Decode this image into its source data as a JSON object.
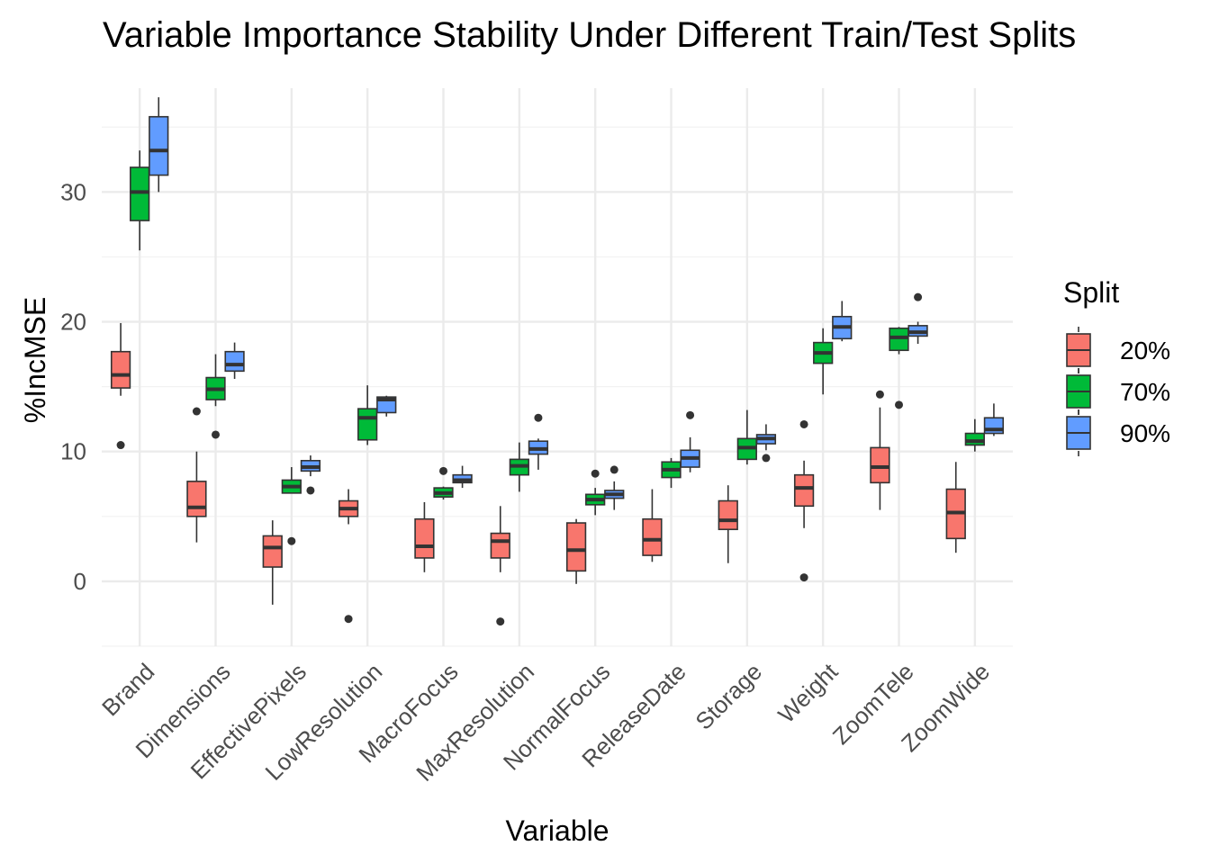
{
  "chart_data": {
    "type": "boxplot",
    "title": "Variable Importance Stability Under Different Train/Test Splits",
    "xlabel": "Variable",
    "ylabel": "%IncMSE",
    "ylim": [
      -5,
      38
    ],
    "yticks": [
      0,
      10,
      20,
      30
    ],
    "grid": true,
    "legend": {
      "title": "Split",
      "position": "right"
    },
    "categories": [
      "Brand",
      "Dimensions",
      "EffectivePixels",
      "LowResolution",
      "MacroFocus",
      "MaxResolution",
      "NormalFocus",
      "ReleaseDate",
      "Storage",
      "Weight",
      "ZoomTele",
      "ZoomWide"
    ],
    "series": [
      {
        "name": "20%",
        "color": "#F8766D",
        "boxes": [
          {
            "min": 14.3,
            "q1": 14.9,
            "median": 15.9,
            "q3": 17.7,
            "max": 19.9,
            "outliers": [
              10.5
            ]
          },
          {
            "min": 3.0,
            "q1": 5.0,
            "median": 5.7,
            "q3": 7.7,
            "max": 10.0,
            "outliers": [
              13.1
            ]
          },
          {
            "min": -1.8,
            "q1": 1.1,
            "median": 2.6,
            "q3": 3.5,
            "max": 4.7,
            "outliers": []
          },
          {
            "min": 4.4,
            "q1": 5.0,
            "median": 5.6,
            "q3": 6.2,
            "max": 7.1,
            "outliers": [
              -2.9
            ]
          },
          {
            "min": 0.7,
            "q1": 1.8,
            "median": 2.7,
            "q3": 4.8,
            "max": 6.1,
            "outliers": []
          },
          {
            "min": 0.7,
            "q1": 1.8,
            "median": 3.1,
            "q3": 3.7,
            "max": 5.8,
            "outliers": [
              -3.1
            ]
          },
          {
            "min": -0.2,
            "q1": 0.8,
            "median": 2.4,
            "q3": 4.5,
            "max": 4.8,
            "outliers": []
          },
          {
            "min": 1.5,
            "q1": 2.0,
            "median": 3.2,
            "q3": 4.8,
            "max": 7.1,
            "outliers": []
          },
          {
            "min": 1.4,
            "q1": 4.0,
            "median": 4.7,
            "q3": 6.2,
            "max": 7.4,
            "outliers": []
          },
          {
            "min": 4.1,
            "q1": 5.8,
            "median": 7.2,
            "q3": 8.2,
            "max": 9.3,
            "outliers": [
              12.1,
              0.3
            ]
          },
          {
            "min": 5.5,
            "q1": 7.6,
            "median": 8.8,
            "q3": 10.3,
            "max": 13.4,
            "outliers": [
              14.4
            ]
          },
          {
            "min": 2.2,
            "q1": 3.3,
            "median": 5.3,
            "q3": 7.1,
            "max": 9.2,
            "outliers": []
          }
        ]
      },
      {
        "name": "70%",
        "color": "#00BA38",
        "boxes": [
          {
            "min": 25.5,
            "q1": 27.8,
            "median": 30.0,
            "q3": 31.9,
            "max": 33.2,
            "outliers": []
          },
          {
            "min": 13.5,
            "q1": 14.0,
            "median": 14.8,
            "q3": 15.7,
            "max": 17.5,
            "outliers": [
              11.3
            ]
          },
          {
            "min": 6.8,
            "q1": 6.8,
            "median": 7.3,
            "q3": 7.8,
            "max": 8.8,
            "outliers": [
              3.1
            ]
          },
          {
            "min": 10.5,
            "q1": 10.9,
            "median": 12.6,
            "q3": 13.3,
            "max": 15.1,
            "outliers": []
          },
          {
            "min": 6.3,
            "q1": 6.5,
            "median": 6.8,
            "q3": 7.2,
            "max": 7.3,
            "outliers": [
              8.5
            ]
          },
          {
            "min": 6.9,
            "q1": 8.2,
            "median": 8.9,
            "q3": 9.4,
            "max": 10.7,
            "outliers": []
          },
          {
            "min": 5.1,
            "q1": 5.9,
            "median": 6.3,
            "q3": 6.7,
            "max": 7.2,
            "outliers": [
              8.3
            ]
          },
          {
            "min": 7.2,
            "q1": 8.0,
            "median": 8.6,
            "q3": 9.2,
            "max": 9.5,
            "outliers": []
          },
          {
            "min": 9.0,
            "q1": 9.4,
            "median": 10.3,
            "q3": 11.0,
            "max": 13.2,
            "outliers": []
          },
          {
            "min": 14.4,
            "q1": 16.8,
            "median": 17.6,
            "q3": 18.4,
            "max": 19.5,
            "outliers": []
          },
          {
            "min": 17.5,
            "q1": 17.8,
            "median": 18.8,
            "q3": 19.5,
            "max": 19.6,
            "outliers": [
              13.6
            ]
          },
          {
            "min": 10.0,
            "q1": 10.5,
            "median": 10.8,
            "q3": 11.4,
            "max": 12.5,
            "outliers": []
          }
        ]
      },
      {
        "name": "90%",
        "color": "#619CFF",
        "boxes": [
          {
            "min": 30.0,
            "q1": 31.3,
            "median": 33.2,
            "q3": 35.8,
            "max": 37.3,
            "outliers": []
          },
          {
            "min": 15.6,
            "q1": 16.2,
            "median": 16.7,
            "q3": 17.7,
            "max": 18.4,
            "outliers": []
          },
          {
            "min": 8.1,
            "q1": 8.5,
            "median": 8.8,
            "q3": 9.3,
            "max": 9.7,
            "outliers": [
              7.0
            ]
          },
          {
            "min": 12.7,
            "q1": 13.0,
            "median": 14.0,
            "q3": 14.2,
            "max": 14.3,
            "outliers": []
          },
          {
            "min": 7.2,
            "q1": 7.6,
            "median": 7.8,
            "q3": 8.2,
            "max": 8.9,
            "outliers": []
          },
          {
            "min": 8.6,
            "q1": 9.8,
            "median": 10.2,
            "q3": 10.8,
            "max": 11.0,
            "outliers": [
              12.6
            ]
          },
          {
            "min": 5.5,
            "q1": 6.4,
            "median": 6.7,
            "q3": 7.0,
            "max": 7.7,
            "outliers": [
              8.6
            ]
          },
          {
            "min": 8.4,
            "q1": 8.8,
            "median": 9.5,
            "q3": 10.1,
            "max": 11.1,
            "outliers": [
              12.8
            ]
          },
          {
            "min": 10.1,
            "q1": 10.6,
            "median": 11.0,
            "q3": 11.3,
            "max": 12.1,
            "outliers": [
              9.5
            ]
          },
          {
            "min": 18.5,
            "q1": 18.7,
            "median": 19.6,
            "q3": 20.4,
            "max": 21.6,
            "outliers": []
          },
          {
            "min": 18.3,
            "q1": 18.9,
            "median": 19.2,
            "q3": 19.7,
            "max": 20.0,
            "outliers": [
              21.9
            ]
          },
          {
            "min": 11.2,
            "q1": 11.4,
            "median": 11.7,
            "q3": 12.6,
            "max": 13.7,
            "outliers": []
          }
        ]
      }
    ]
  }
}
